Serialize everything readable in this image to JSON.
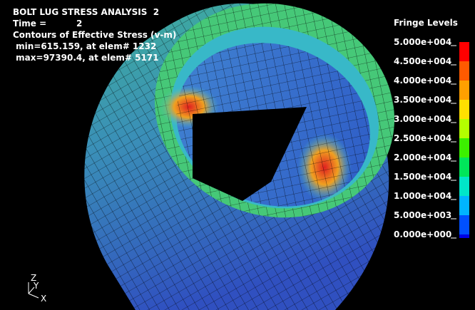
{
  "header": {
    "lines": [
      "BOLT LUG STRESS ANALYSIS  2",
      "Time =          2",
      "Contours of Effective Stress (v-m)",
      " min=615.159, at elem# 1232",
      " max=97390.4, at elem# 5171"
    ]
  },
  "legend": {
    "title": "Fringe Levels",
    "levels": [
      {
        "label": "5.000e+004",
        "color": "#ff0000"
      },
      {
        "label": "4.500e+004",
        "color": "#ff5a00"
      },
      {
        "label": "4.000e+004",
        "color": "#ffa000"
      },
      {
        "label": "3.500e+004",
        "color": "#ffe000"
      },
      {
        "label": "3.000e+004",
        "color": "#b4ff00"
      },
      {
        "label": "2.500e+004",
        "color": "#3cf000"
      },
      {
        "label": "2.000e+004",
        "color": "#00e65a"
      },
      {
        "label": "1.500e+004",
        "color": "#00e6c8"
      },
      {
        "label": "1.000e+004",
        "color": "#00b4ff"
      },
      {
        "label": "5.000e+003",
        "color": "#0050ff"
      },
      {
        "label": "0.000e+000",
        "color": "#0000e6"
      }
    ]
  },
  "triad": {
    "axes": [
      "Z",
      "Y",
      "X"
    ]
  }
}
